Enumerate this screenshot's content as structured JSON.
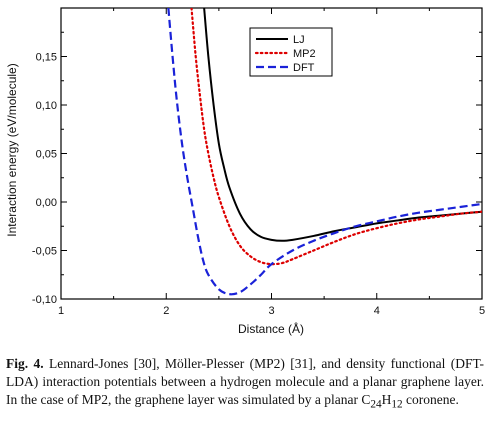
{
  "chart_data": {
    "type": "line",
    "xlabel": "Distance (Å)",
    "ylabel": "Interaction energy (eV/molecule)",
    "xlim": [
      1,
      5
    ],
    "ylim": [
      -0.1,
      0.2
    ],
    "xticks": [
      "1",
      "2",
      "3",
      "4",
      "5"
    ],
    "yticks": [
      "-0,10",
      "-0,05",
      "0,00",
      "0,05",
      "0,10",
      "0,15"
    ],
    "ytick_values": [
      -0.1,
      -0.05,
      0.0,
      0.05,
      0.1,
      0.15
    ],
    "xtick_values": [
      1,
      2,
      3,
      4,
      5
    ],
    "grid": false,
    "legend_position": "top-right",
    "series": [
      {
        "name": "LJ",
        "color": "#000000",
        "style": "solid",
        "x": [
          2.36,
          2.4,
          2.45,
          2.5,
          2.55,
          2.6,
          2.7,
          2.8,
          2.9,
          3.0,
          3.1,
          3.2,
          3.4,
          3.6,
          3.8,
          4.0,
          4.2,
          4.4,
          4.6,
          4.8,
          5.0
        ],
        "y": [
          0.2,
          0.15,
          0.1,
          0.06,
          0.035,
          0.015,
          -0.012,
          -0.028,
          -0.036,
          -0.039,
          -0.04,
          -0.039,
          -0.035,
          -0.03,
          -0.026,
          -0.022,
          -0.019,
          -0.016,
          -0.014,
          -0.012,
          -0.01
        ]
      },
      {
        "name": "MP2",
        "color": "#dd0000",
        "style": "dotted",
        "x": [
          2.24,
          2.28,
          2.32,
          2.36,
          2.4,
          2.45,
          2.5,
          2.6,
          2.7,
          2.8,
          2.9,
          3.0,
          3.1,
          3.2,
          3.4,
          3.6,
          3.8,
          4.0,
          4.2,
          4.4,
          4.6,
          4.8,
          5.0
        ],
        "y": [
          0.2,
          0.15,
          0.11,
          0.075,
          0.05,
          0.025,
          0.005,
          -0.025,
          -0.045,
          -0.056,
          -0.062,
          -0.064,
          -0.063,
          -0.059,
          -0.05,
          -0.041,
          -0.033,
          -0.027,
          -0.022,
          -0.018,
          -0.015,
          -0.012,
          -0.01
        ]
      },
      {
        "name": "DFT",
        "color": "#1a22d8",
        "style": "dashed",
        "x": [
          2.02,
          2.06,
          2.1,
          2.15,
          2.2,
          2.25,
          2.3,
          2.35,
          2.4,
          2.5,
          2.6,
          2.7,
          2.8,
          2.9,
          3.0,
          3.2,
          3.4,
          3.6,
          3.8,
          4.0,
          4.2,
          4.4,
          4.6,
          4.8,
          5.0
        ],
        "y": [
          0.2,
          0.15,
          0.105,
          0.06,
          0.025,
          -0.005,
          -0.035,
          -0.06,
          -0.075,
          -0.09,
          -0.095,
          -0.093,
          -0.085,
          -0.075,
          -0.064,
          -0.05,
          -0.04,
          -0.032,
          -0.025,
          -0.02,
          -0.015,
          -0.011,
          -0.008,
          -0.005,
          -0.002
        ]
      }
    ]
  },
  "caption": {
    "fig_label": "Fig. 4.",
    "text": " Lennard-Jones [30], Möller-Plesser (MP2) [31], and density functional (DFT-LDA) interaction potentials between a hydrogen molecule and a planar graphene layer. In the case of MP2, the graphene layer was simulated by a planar ",
    "formula_c": "C",
    "formula_c_sub": "24",
    "formula_h": "H",
    "formula_h_sub": "12",
    "text_end": " coronene."
  }
}
